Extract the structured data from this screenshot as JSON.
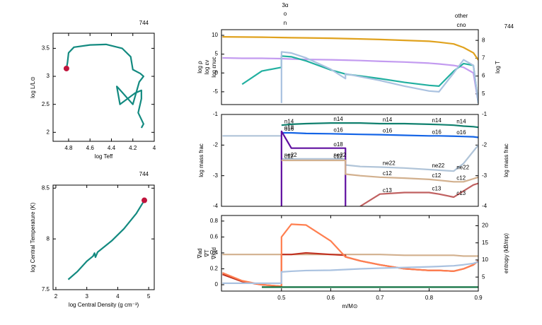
{
  "chart_data": [
    {
      "type": "line",
      "title": "744",
      "xlabel": "log Teff",
      "ylabel": "log L/L⊙",
      "x": [
        4.12,
        4.1,
        4.15,
        4.12,
        4.12,
        4.18,
        4.32,
        4.35,
        4.33,
        4.2,
        4.14,
        4.1,
        4.13,
        4.2,
        4.22,
        4.3,
        4.45,
        4.6,
        4.75,
        4.8,
        4.81,
        4.82
      ],
      "values": [
        2.08,
        2.15,
        2.35,
        2.6,
        2.75,
        2.7,
        2.5,
        2.82,
        2.78,
        2.5,
        2.9,
        3.0,
        3.05,
        3.12,
        3.35,
        3.5,
        3.57,
        3.56,
        3.52,
        3.42,
        3.25,
        3.14
      ],
      "color": "#138a80",
      "current_color": "#c0143c",
      "xlim": [
        4.945,
        4.0
      ],
      "xticks": [
        4.8,
        4.6,
        4.4,
        4.2,
        4
      ],
      "ylim": [
        1.84,
        3.77
      ],
      "yticks": [
        2,
        2.5,
        3,
        3.5
      ]
    },
    {
      "type": "line",
      "title": "744",
      "xlabel": "log Central Density (g cm⁻³)",
      "ylabel": "log Central Temperature (K)",
      "x": [
        2.4,
        2.7,
        3.0,
        3.2,
        3.25,
        3.28,
        3.35,
        3.8,
        4.2,
        4.6,
        4.86
      ],
      "values": [
        7.6,
        7.68,
        7.78,
        7.83,
        7.86,
        7.82,
        7.87,
        7.98,
        8.1,
        8.25,
        8.38
      ],
      "color": "#138a80",
      "current_color": "#c0143c",
      "xlim": [
        1.91,
        5.18
      ],
      "xticks": [
        2,
        3,
        4,
        5
      ],
      "ylim": [
        7.5,
        8.53
      ],
      "yticks": [
        7.5,
        8,
        8.5
      ]
    },
    {
      "type": "line",
      "title": "744",
      "label_style": "axis",
      "annotations": [
        "3α",
        "o",
        "n",
        "other",
        "cno"
      ],
      "x": [
        0.38,
        0.42,
        0.46,
        0.5,
        0.5,
        0.52,
        0.55,
        0.6,
        0.63,
        0.63,
        0.66,
        0.7,
        0.75,
        0.8,
        0.82,
        0.85,
        0.87,
        0.89,
        0.9
      ],
      "series": [
        {
          "name": "log ρ",
          "color": "#c39bf0",
          "values": [
            4.0,
            3.9,
            3.9,
            3.8,
            3.8,
            3.7,
            3.6,
            3.5,
            3.4,
            3.4,
            3.3,
            3.1,
            2.9,
            2.6,
            2.4,
            2.0,
            1.5,
            0,
            -8
          ]
        },
        {
          "name": "log εν",
          "color": "#22b0a0",
          "values": [
            null,
            -3,
            0.5,
            1.5,
            4.5,
            4.3,
            3.2,
            0.8,
            -0.3,
            -0.3,
            -0.8,
            -1.5,
            -2.5,
            -3.3,
            -3.5,
            0.5,
            2.5,
            2,
            -8
          ]
        },
        {
          "name": "log εnuc",
          "color": "#aac2e0",
          "values": [
            null,
            null,
            null,
            -8,
            5.6,
            5.3,
            4.0,
            1.0,
            -1.5,
            -0.2,
            -1.0,
            -2.0,
            -3.5,
            -4.8,
            -5.0,
            0,
            3.5,
            2,
            -8
          ]
        },
        {
          "name": "log T",
          "color": "#e0a21e",
          "axis": "y2",
          "values": [
            8.2,
            8.19,
            8.18,
            8.16,
            8.16,
            8.15,
            8.14,
            8.12,
            8.1,
            8.1,
            8.08,
            8.05,
            8.0,
            7.95,
            7.9,
            7.8,
            7.6,
            7.3,
            6.9
          ]
        }
      ],
      "xlim": [
        0.378,
        0.9
      ],
      "ylim": [
        -8.4,
        11.5
      ],
      "yticks": [
        -5,
        0,
        5,
        10
      ],
      "y2lim": [
        4.4,
        8.6
      ],
      "y2ticks": [
        5,
        6,
        7,
        8
      ]
    },
    {
      "type": "line",
      "label_style": "inline",
      "ylabel": "log mass frac",
      "y2label": "log mass frac",
      "x": [
        0.38,
        0.42,
        0.46,
        0.5,
        0.5,
        0.52,
        0.55,
        0.6,
        0.63,
        0.63,
        0.66,
        0.7,
        0.75,
        0.8,
        0.82,
        0.85,
        0.87,
        0.89,
        0.9
      ],
      "series": [
        {
          "name": "n14",
          "color": "#10806e",
          "values": [
            null,
            null,
            null,
            -1.35,
            -1.35,
            -1.32,
            -1.3,
            -1.28,
            -1.28,
            -1.28,
            -1.28,
            -1.3,
            -1.3,
            -1.32,
            -1.33,
            -1.35,
            -1.38,
            -1.4,
            -1.42
          ]
        },
        {
          "name": "o16",
          "color": "#1464e6",
          "values": [
            null,
            null,
            null,
            -1.6,
            -1.6,
            -1.6,
            -1.62,
            -1.63,
            -1.64,
            -1.64,
            -1.65,
            -1.66,
            -1.68,
            -1.7,
            -1.7,
            -1.71,
            -1.72,
            -1.73,
            -1.75
          ]
        },
        {
          "name": "ne22",
          "color": "#b0c4d8",
          "values": [
            -1.7,
            -1.7,
            -1.7,
            -1.7,
            -2.45,
            -2.45,
            -2.45,
            -2.45,
            -2.45,
            -2.65,
            -2.7,
            -2.72,
            -2.75,
            -2.8,
            -2.82,
            -2.85,
            -2.6,
            -2.2,
            -2.0
          ]
        },
        {
          "name": "o18",
          "color": "#6010a0",
          "values": [
            null,
            null,
            null,
            -4,
            -1.55,
            -2.1,
            -2.1,
            -2.1,
            -2.1,
            -4,
            null,
            null,
            null,
            null,
            null,
            null,
            null,
            null,
            null
          ]
        },
        {
          "name": "c12",
          "color": "#d2b08e",
          "values": [
            null,
            null,
            null,
            null,
            -2.5,
            -2.5,
            -2.5,
            -2.5,
            -2.5,
            -2.95,
            -3.0,
            -3.05,
            -3.08,
            -3.12,
            -3.15,
            -3.2,
            -3.2,
            -3.1,
            -3.05
          ]
        },
        {
          "name": "c13",
          "color": "#c06060",
          "values": [
            null,
            null,
            null,
            null,
            null,
            null,
            null,
            null,
            null,
            null,
            -4,
            -3.6,
            -3.55,
            -3.55,
            -3.6,
            -3.7,
            -3.5,
            -3.3,
            -3.25
          ]
        }
      ],
      "xlim": [
        0.378,
        0.9
      ],
      "ylim": [
        -4,
        -1
      ],
      "yticks": [
        -4,
        -3,
        -2,
        -1
      ],
      "y2lim": [
        -4,
        -1
      ],
      "y2ticks": [
        -4,
        -3,
        -2,
        -1
      ]
    },
    {
      "type": "line",
      "label_style": "axis",
      "xlabel": "m/M⊙",
      "y2label": "entropy (kB/mp)",
      "x": [
        0.38,
        0.42,
        0.46,
        0.5,
        0.5,
        0.52,
        0.55,
        0.6,
        0.63,
        0.63,
        0.66,
        0.7,
        0.75,
        0.8,
        0.82,
        0.85,
        0.87,
        0.89,
        0.9
      ],
      "series": [
        {
          "name": "∇ad",
          "color": "#d2b08e",
          "values": [
            0.38,
            0.38,
            0.38,
            0.38,
            0.38,
            0.38,
            0.38,
            0.38,
            0.38,
            0.38,
            0.38,
            0.38,
            0.37,
            0.37,
            0.37,
            0.37,
            0.36,
            0.36,
            0.36
          ]
        },
        {
          "name": "∇T",
          "color": "#c03020",
          "values": [
            0.13,
            0.04,
            0.0,
            -0.02,
            0.38,
            0.38,
            0.4,
            0.38,
            0.37,
            0.35,
            0.3,
            0.25,
            0.2,
            0.18,
            0.18,
            0.17,
            0.2,
            0.25,
            0.3
          ]
        },
        {
          "name": "∇rad",
          "color": "#ff7f50",
          "values": [
            0.15,
            0.05,
            0.0,
            -0.02,
            0.6,
            0.76,
            0.75,
            0.55,
            0.35,
            0.35,
            0.3,
            0.25,
            0.2,
            0.18,
            0.18,
            0.17,
            0.2,
            0.25,
            0.3
          ]
        },
        {
          "color": "#107040",
          "values": [
            null,
            null,
            -0.03,
            -0.03,
            -0.03,
            -0.03,
            -0.03,
            -0.03,
            -0.03,
            -0.03,
            -0.03,
            -0.03,
            -0.03,
            -0.03,
            -0.03,
            -0.03,
            -0.03,
            -0.03,
            -0.03
          ]
        },
        {
          "color": "#aac2e0",
          "axis": "y2",
          "values": [
            3.2,
            3.2,
            3.2,
            3.2,
            6.5,
            6.7,
            6.9,
            7.0,
            7.2,
            7.2,
            7.4,
            7.6,
            7.8,
            8.0,
            8.1,
            8.3,
            8.6,
            9.0,
            9.5
          ]
        }
      ],
      "xlim": [
        0.378,
        0.9
      ],
      "xticks": [
        0.5,
        0.6,
        0.7,
        0.8,
        0.9
      ],
      "ylim": [
        -0.08,
        0.87
      ],
      "yticks": [
        0,
        0.2,
        0.4,
        0.6,
        0.8
      ],
      "y2lim": [
        0.9,
        23
      ],
      "y2ticks": [
        5,
        10,
        15,
        20
      ]
    }
  ]
}
